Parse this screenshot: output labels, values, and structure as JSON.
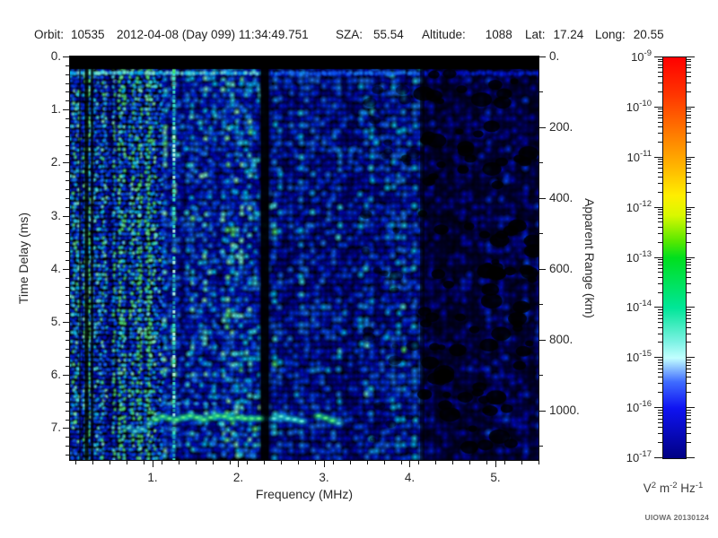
{
  "header": {
    "items": [
      {
        "id": "orbit",
        "label": "Orbit:",
        "value": "10535"
      },
      {
        "id": "datetime",
        "label": "",
        "value": "2012-04-08 (Day 099) 11:34:49.751"
      },
      {
        "id": "sza",
        "label": "SZA:",
        "value": "55.54"
      },
      {
        "id": "altitude",
        "label": "Altitude:",
        "value": "1088"
      },
      {
        "id": "lat",
        "label": "Lat:",
        "value": "17.24"
      },
      {
        "id": "long",
        "label": "Long:",
        "value": "20.55"
      }
    ]
  },
  "chart_data": {
    "type": "heatmap",
    "subtype": "radar-sounder-ionogram-spectrogram",
    "xlabel": "Frequency (MHz)",
    "ylabel_left": "Time Delay (ms)",
    "ylabel_right": "Apparent Range (km)",
    "x_range_mhz": [
      0.037,
      5.503
    ],
    "x_ticks": [
      {
        "value": 1,
        "label": "1."
      },
      {
        "value": 2,
        "label": "2."
      },
      {
        "value": 3,
        "label": "3."
      },
      {
        "value": 4,
        "label": "4."
      },
      {
        "value": 5,
        "label": "5."
      }
    ],
    "x_minor_step_mhz": 0.2,
    "y_left_range_ms": [
      0,
      7.601
    ],
    "y_left_ticks": [
      {
        "value": 0,
        "label": "0."
      },
      {
        "value": 1,
        "label": "1."
      },
      {
        "value": 2,
        "label": "2."
      },
      {
        "value": 3,
        "label": "3."
      },
      {
        "value": 4,
        "label": "4."
      },
      {
        "value": 5,
        "label": "5."
      },
      {
        "value": 6,
        "label": "6."
      },
      {
        "value": 7,
        "label": "7."
      }
    ],
    "y_left_minor_per_major": 6,
    "y_right_range_km": [
      0,
      1140
    ],
    "y_right_ticks": [
      {
        "value": 0,
        "label": "0."
      },
      {
        "value": 200,
        "label": "200."
      },
      {
        "value": 400,
        "label": "400."
      },
      {
        "value": 600,
        "label": "600."
      },
      {
        "value": 800,
        "label": "800."
      },
      {
        "value": 1000,
        "label": "1000."
      }
    ],
    "y_right_minor_step_km": 100,
    "grid": false,
    "colorbar": {
      "scale": "log10",
      "max": "1e-9",
      "min": "1e-17",
      "tick_exponents": [
        -9,
        -10,
        -11,
        -12,
        -13,
        -14,
        -15,
        -16,
        -17
      ],
      "unit_parts": [
        [
          "V",
          "2"
        ],
        [
          "m",
          "-2"
        ],
        [
          "Hz",
          "-1"
        ]
      ],
      "gradient_stops": [
        {
          "pos": 0.0,
          "color": "#ff0000"
        },
        {
          "pos": 0.09,
          "color": "#ff3300"
        },
        {
          "pos": 0.185,
          "color": "#ff7700"
        },
        {
          "pos": 0.28,
          "color": "#ffbb00"
        },
        {
          "pos": 0.345,
          "color": "#ffee00"
        },
        {
          "pos": 0.395,
          "color": "#d8f800"
        },
        {
          "pos": 0.46,
          "color": "#55e800"
        },
        {
          "pos": 0.5,
          "color": "#00df1e"
        },
        {
          "pos": 0.625,
          "color": "#00e698"
        },
        {
          "pos": 0.71,
          "color": "#7df2e4"
        },
        {
          "pos": 0.75,
          "color": "#c2ffff"
        },
        {
          "pos": 0.81,
          "color": "#3f6bff"
        },
        {
          "pos": 0.875,
          "color": "#0f13f2"
        },
        {
          "pos": 1.0,
          "color": "#000083"
        }
      ]
    },
    "features": {
      "transmit_blank_band_ms": [
        0,
        0.24
      ],
      "first_return_bright_row_ms": 0.3,
      "interference_line_mhz": 1.25,
      "absorption_dark_band_mhz": 2.31,
      "dark_columns_mhz": [
        0.22,
        0.29
      ],
      "noise_floor_drop_above_mhz": 4.15,
      "echo_trace": {
        "description": "ionospheric echo trace",
        "segments": [
          {
            "style": "cyan_dim",
            "points": [
              [
                0.72,
                7.0
              ],
              [
                0.8,
                7.06
              ],
              [
                0.88,
                7.02
              ],
              [
                0.96,
                6.92
              ]
            ]
          },
          {
            "style": "green",
            "points": [
              [
                1.04,
                6.84
              ],
              [
                1.12,
                6.78
              ],
              [
                1.2,
                6.82
              ],
              [
                1.28,
                6.84
              ],
              [
                1.36,
                6.8
              ],
              [
                1.44,
                6.77
              ],
              [
                1.52,
                6.8
              ],
              [
                1.6,
                6.84
              ],
              [
                1.68,
                6.8
              ],
              [
                1.76,
                6.77
              ],
              [
                1.84,
                6.78
              ],
              [
                1.92,
                6.82
              ],
              [
                2.0,
                6.8
              ],
              [
                2.08,
                6.82
              ],
              [
                2.16,
                6.82
              ],
              [
                2.24,
                6.82
              ]
            ]
          },
          {
            "style": "cyan",
            "points": [
              [
                2.42,
                6.82
              ],
              [
                2.5,
                6.78
              ],
              [
                2.58,
                6.82
              ],
              [
                2.66,
                6.84
              ],
              [
                2.74,
                6.87
              ]
            ]
          },
          {
            "style": "green",
            "points": [
              [
                2.94,
                6.77
              ],
              [
                3.02,
                6.81
              ],
              [
                3.1,
                6.86
              ]
            ]
          },
          {
            "style": "cyan_dim",
            "points": [
              [
                3.17,
                6.91
              ]
            ]
          }
        ],
        "scatter_dots_above": {
          "delay_ms": 6.54,
          "freqs_mhz": [
            1.19,
            1.3,
            1.4,
            1.51,
            1.62,
            1.72
          ]
        }
      }
    }
  },
  "credit": "UIOWA 20130124"
}
